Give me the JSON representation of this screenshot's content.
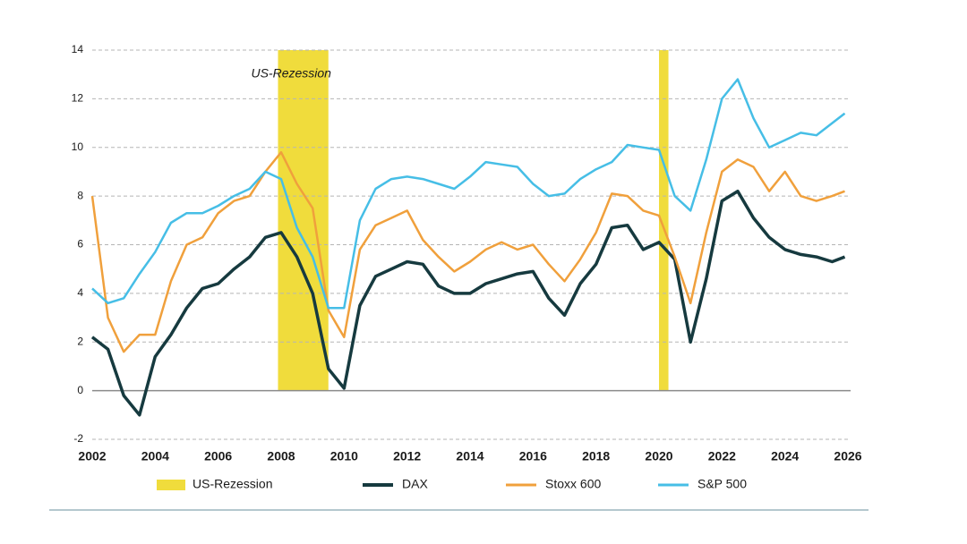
{
  "chart_data": {
    "type": "line",
    "annotation": "US-Rezession",
    "recessions": {
      "name": "US-Rezession",
      "color": "#f0dc3c",
      "spans": [
        [
          2007.9,
          2009.5
        ],
        [
          2020.0,
          2020.3
        ]
      ]
    },
    "x": [
      2002.0,
      2002.5,
      2003.0,
      2003.5,
      2004.0,
      2004.5,
      2005.0,
      2005.5,
      2006.0,
      2006.5,
      2007.0,
      2007.5,
      2008.0,
      2008.5,
      2009.0,
      2009.5,
      2010.0,
      2010.5,
      2011.0,
      2011.5,
      2012.0,
      2012.5,
      2013.0,
      2013.5,
      2014.0,
      2014.5,
      2015.0,
      2015.5,
      2016.0,
      2016.5,
      2017.0,
      2017.5,
      2018.0,
      2018.5,
      2019.0,
      2019.5,
      2020.0,
      2020.5,
      2021.0,
      2021.5,
      2022.0,
      2022.5,
      2023.0,
      2023.5,
      2024.0,
      2024.5,
      2025.0,
      2025.5,
      2025.9
    ],
    "series": [
      {
        "name": "DAX",
        "color": "#163a3f",
        "width": 3.5,
        "values": [
          2.2,
          1.7,
          -0.2,
          -1.0,
          1.4,
          2.3,
          3.4,
          4.2,
          4.4,
          5.0,
          5.5,
          6.3,
          6.5,
          5.5,
          4.0,
          0.9,
          0.1,
          3.5,
          4.7,
          5.0,
          5.3,
          5.2,
          4.3,
          4.0,
          4.0,
          4.4,
          4.6,
          4.8,
          4.9,
          3.8,
          3.1,
          4.4,
          5.2,
          6.7,
          6.8,
          5.8,
          6.1,
          5.4,
          2.0,
          4.6,
          7.8,
          8.2,
          7.1,
          6.3,
          5.8,
          5.6,
          5.5,
          5.3,
          5.5
        ]
      },
      {
        "name": "Stoxx 600",
        "color": "#f0a03c",
        "width": 2.5,
        "values": [
          8.0,
          3.0,
          1.6,
          2.3,
          2.3,
          4.5,
          6.0,
          6.3,
          7.3,
          7.8,
          8.0,
          9.0,
          9.8,
          8.5,
          7.5,
          3.3,
          2.2,
          5.8,
          6.8,
          7.1,
          7.4,
          6.2,
          5.5,
          4.9,
          5.3,
          5.8,
          6.1,
          5.8,
          6.0,
          5.2,
          4.5,
          5.4,
          6.5,
          8.1,
          8.0,
          7.4,
          7.2,
          5.5,
          3.6,
          6.5,
          9.0,
          9.5,
          9.2,
          8.2,
          9.0,
          8.0,
          7.8,
          8.0,
          8.2
        ]
      },
      {
        "name": "S&P 500",
        "color": "#46bee6",
        "width": 2.5,
        "values": [
          4.2,
          3.6,
          3.8,
          4.8,
          5.7,
          6.9,
          7.3,
          7.3,
          7.6,
          8.0,
          8.3,
          9.0,
          8.7,
          6.7,
          5.5,
          3.4,
          3.4,
          7.0,
          8.3,
          8.7,
          8.8,
          8.7,
          8.5,
          8.3,
          8.8,
          9.4,
          9.3,
          9.2,
          8.5,
          8.0,
          8.1,
          8.7,
          9.1,
          9.4,
          10.1,
          10.0,
          9.9,
          8.0,
          7.4,
          9.5,
          12.0,
          12.8,
          11.2,
          10.0,
          10.3,
          10.6,
          10.5,
          11.0,
          11.4
        ]
      }
    ],
    "xlim": [
      2002,
      2026
    ],
    "xticks": [
      2002,
      2004,
      2006,
      2008,
      2010,
      2012,
      2014,
      2016,
      2018,
      2020,
      2022,
      2024,
      2026
    ],
    "ylim": [
      -2,
      14
    ],
    "yticks": [
      -2,
      0,
      2,
      4,
      6,
      8,
      10,
      12,
      14
    ],
    "grid": true,
    "legend": "bottom"
  }
}
